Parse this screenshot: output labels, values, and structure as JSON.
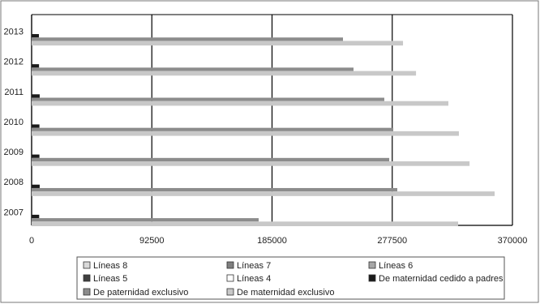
{
  "chart_data": {
    "type": "bar",
    "orientation": "horizontal",
    "categories": [
      "2007",
      "2008",
      "2009",
      "2010",
      "2011",
      "2012",
      "2013"
    ],
    "series": [
      {
        "name": "Líneas 8",
        "color": "#d9d9d9",
        "values": [
          0,
          0,
          0,
          0,
          0,
          0,
          0
        ]
      },
      {
        "name": "Líneas 7",
        "color": "#7f7f7f",
        "values": [
          0,
          0,
          0,
          0,
          0,
          0,
          0
        ]
      },
      {
        "name": "Líneas 6",
        "color": "#a6a6a6",
        "values": [
          0,
          0,
          0,
          0,
          0,
          0,
          0
        ]
      },
      {
        "name": "Líneas 5",
        "color": "#404040",
        "values": [
          0,
          0,
          0,
          0,
          0,
          0,
          0
        ]
      },
      {
        "name": "Líneas 4",
        "color": "#ffffff",
        "values": [
          0,
          0,
          0,
          0,
          0,
          0,
          0
        ]
      },
      {
        "name": "De maternidad cedido a padres",
        "color": "#1a1a1a",
        "values": [
          5800,
          6200,
          6000,
          6000,
          6200,
          5700,
          5600
        ]
      },
      {
        "name": "De paternidad exclusivo",
        "color": "#8c8c8c",
        "values": [
          174700,
          281400,
          275200,
          278300,
          271400,
          247700,
          239600
        ]
      },
      {
        "name": "De maternidad exclusivo",
        "color": "#c8c8c8",
        "values": [
          328200,
          356300,
          337000,
          328800,
          320700,
          295800,
          285800
        ]
      }
    ],
    "xlim": [
      0,
      370000
    ],
    "xticks": [
      0,
      92500,
      185000,
      277500,
      370000
    ],
    "grid": true
  }
}
